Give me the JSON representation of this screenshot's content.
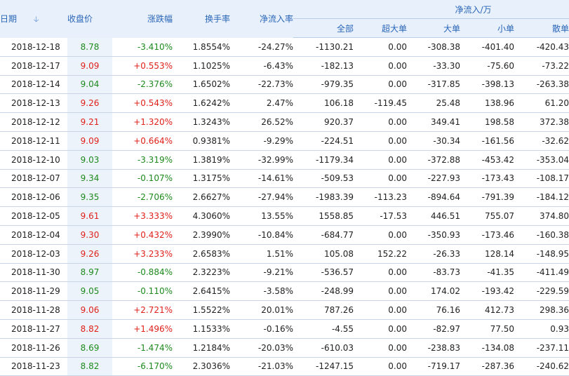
{
  "headers": {
    "date": "日期",
    "sort_icon": "sort-down-arrow-icon",
    "close": "收盘价",
    "change": "涨跌幅",
    "turnover": "换手率",
    "net_rate": "净流入率",
    "group": "净流入/万",
    "all": "全部",
    "super": "超大单",
    "big": "大单",
    "small": "小单",
    "retail": "散单"
  },
  "colors": {
    "up": "#e0201a",
    "down": "#1e8a1e",
    "header_text": "#2a66b8",
    "header_bg": "#e8f0fb"
  },
  "rows": [
    {
      "date": "2018-12-18",
      "close": "8.78",
      "change": "-3.410%",
      "dir": "down",
      "turnover": "1.8554%",
      "net_rate": "-24.27%",
      "all": "-1130.21",
      "super": "0.00",
      "big": "-308.38",
      "small": "-401.40",
      "retail": "-420.43"
    },
    {
      "date": "2018-12-17",
      "close": "9.09",
      "change": "+0.553%",
      "dir": "up",
      "turnover": "1.1025%",
      "net_rate": "-6.43%",
      "all": "-182.13",
      "super": "0.00",
      "big": "-33.30",
      "small": "-75.60",
      "retail": "-73.22"
    },
    {
      "date": "2018-12-14",
      "close": "9.04",
      "change": "-2.376%",
      "dir": "down",
      "turnover": "1.6502%",
      "net_rate": "-22.73%",
      "all": "-979.35",
      "super": "0.00",
      "big": "-317.85",
      "small": "-398.13",
      "retail": "-263.38"
    },
    {
      "date": "2018-12-13",
      "close": "9.26",
      "change": "+0.543%",
      "dir": "up",
      "turnover": "1.6242%",
      "net_rate": "2.47%",
      "all": "106.18",
      "super": "-119.45",
      "big": "25.48",
      "small": "138.96",
      "retail": "61.20"
    },
    {
      "date": "2018-12-12",
      "close": "9.21",
      "change": "+1.320%",
      "dir": "up",
      "turnover": "1.3243%",
      "net_rate": "26.52%",
      "all": "920.37",
      "super": "0.00",
      "big": "349.41",
      "small": "198.58",
      "retail": "372.38"
    },
    {
      "date": "2018-12-11",
      "close": "9.09",
      "change": "+0.664%",
      "dir": "up",
      "turnover": "0.9381%",
      "net_rate": "-9.29%",
      "all": "-224.51",
      "super": "0.00",
      "big": "-30.34",
      "small": "-161.56",
      "retail": "-32.62"
    },
    {
      "date": "2018-12-10",
      "close": "9.03",
      "change": "-3.319%",
      "dir": "down",
      "turnover": "1.3819%",
      "net_rate": "-32.99%",
      "all": "-1179.34",
      "super": "0.00",
      "big": "-372.88",
      "small": "-453.42",
      "retail": "-353.04"
    },
    {
      "date": "2018-12-07",
      "close": "9.34",
      "change": "-0.107%",
      "dir": "down",
      "turnover": "1.3175%",
      "net_rate": "-14.61%",
      "all": "-509.53",
      "super": "0.00",
      "big": "-227.93",
      "small": "-173.43",
      "retail": "-108.17"
    },
    {
      "date": "2018-12-06",
      "close": "9.35",
      "change": "-2.706%",
      "dir": "down",
      "turnover": "2.6627%",
      "net_rate": "-27.94%",
      "all": "-1983.39",
      "super": "-113.23",
      "big": "-894.64",
      "small": "-791.39",
      "retail": "-184.12"
    },
    {
      "date": "2018-12-05",
      "close": "9.61",
      "change": "+3.333%",
      "dir": "up",
      "turnover": "4.3060%",
      "net_rate": "13.55%",
      "all": "1558.85",
      "super": "-17.53",
      "big": "446.51",
      "small": "755.07",
      "retail": "374.80"
    },
    {
      "date": "2018-12-04",
      "close": "9.30",
      "change": "+0.432%",
      "dir": "up",
      "turnover": "2.3990%",
      "net_rate": "-10.84%",
      "all": "-684.77",
      "super": "0.00",
      "big": "-350.93",
      "small": "-173.46",
      "retail": "-160.38"
    },
    {
      "date": "2018-12-03",
      "close": "9.26",
      "change": "+3.233%",
      "dir": "up",
      "turnover": "2.6583%",
      "net_rate": "1.51%",
      "all": "105.08",
      "super": "152.22",
      "big": "-26.33",
      "small": "128.14",
      "retail": "-148.95"
    },
    {
      "date": "2018-11-30",
      "close": "8.97",
      "change": "-0.884%",
      "dir": "down",
      "turnover": "2.3223%",
      "net_rate": "-9.21%",
      "all": "-536.57",
      "super": "0.00",
      "big": "-83.73",
      "small": "-41.35",
      "retail": "-411.49"
    },
    {
      "date": "2018-11-29",
      "close": "9.05",
      "change": "-0.110%",
      "dir": "down",
      "turnover": "2.6415%",
      "net_rate": "-3.58%",
      "all": "-248.99",
      "super": "0.00",
      "big": "174.02",
      "small": "-193.42",
      "retail": "-229.59"
    },
    {
      "date": "2018-11-28",
      "close": "9.06",
      "change": "+2.721%",
      "dir": "up",
      "turnover": "1.5522%",
      "net_rate": "20.01%",
      "all": "787.26",
      "super": "0.00",
      "big": "76.16",
      "small": "412.73",
      "retail": "298.36"
    },
    {
      "date": "2018-11-27",
      "close": "8.82",
      "change": "+1.496%",
      "dir": "up",
      "turnover": "1.1533%",
      "net_rate": "-0.16%",
      "all": "-4.55",
      "super": "0.00",
      "big": "-82.97",
      "small": "77.50",
      "retail": "0.93"
    },
    {
      "date": "2018-11-26",
      "close": "8.69",
      "change": "-1.474%",
      "dir": "down",
      "turnover": "1.2184%",
      "net_rate": "-20.03%",
      "all": "-610.03",
      "super": "0.00",
      "big": "-238.83",
      "small": "-134.08",
      "retail": "-237.11"
    },
    {
      "date": "2018-11-23",
      "close": "8.82",
      "change": "-6.170%",
      "dir": "down",
      "turnover": "2.3036%",
      "net_rate": "-21.03%",
      "all": "-1247.15",
      "super": "0.00",
      "big": "-719.17",
      "small": "-287.36",
      "retail": "-240.62"
    }
  ]
}
